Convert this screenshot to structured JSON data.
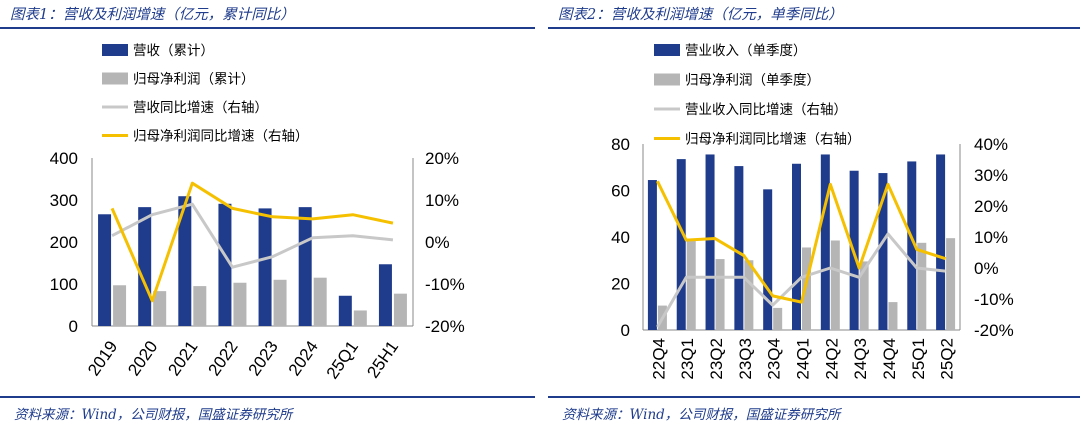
{
  "panels": [
    {
      "title": "图表1：营收及利润增速（亿元，累计同比）",
      "source": "资料来源：Wind，公司财报，国盛证券研究所"
    },
    {
      "title": "图表2：营收及利润增速（亿元，单季同比）",
      "source": "资料来源：Wind，公司财报，国盛证券研究所"
    }
  ],
  "colors": {
    "revenue_bar": "#1f3c8c",
    "profit_bar": "#b5b5b5",
    "revenue_growth_line": "#c8c8c8",
    "profit_growth_line": "#f5c000",
    "rule": "#1f3c8c"
  },
  "chart_data": [
    {
      "type": "bar",
      "title": "营收及利润增速（亿元，累计同比）",
      "categories": [
        "2019",
        "2020",
        "2021",
        "2022",
        "2023",
        "2024",
        "25Q1",
        "25H1"
      ],
      "series": [
        {
          "name": "营收（累计）",
          "type": "bar",
          "axis": "left",
          "values": [
            266,
            283,
            309,
            291,
            280,
            283,
            72,
            147
          ]
        },
        {
          "name": "归母净利润（累计）",
          "type": "bar",
          "axis": "left",
          "values": [
            97,
            83,
            95,
            103,
            110,
            115,
            37,
            77
          ]
        },
        {
          "name": "营收同比增速（右轴）",
          "type": "line",
          "axis": "right",
          "values": [
            1.5,
            6.5,
            9.0,
            -6.0,
            -3.5,
            1.0,
            1.5,
            0.5
          ]
        },
        {
          "name": "归母净利润同比增速（右轴）",
          "type": "line",
          "axis": "right",
          "values": [
            8.0,
            -14.0,
            14.0,
            8.0,
            6.0,
            5.5,
            6.5,
            4.5
          ]
        }
      ],
      "left_axis": {
        "min": 0,
        "max": 400,
        "ticks": [
          0,
          100,
          200,
          300,
          400
        ],
        "tick_labels": [
          "0",
          "100",
          "200",
          "300",
          "400"
        ]
      },
      "right_axis": {
        "min": -20,
        "max": 20,
        "ticks": [
          -20,
          -10,
          0,
          10,
          20
        ],
        "tick_labels": [
          "-20%",
          "-10%",
          "0%",
          "10%",
          "20%"
        ]
      },
      "grid": false,
      "legend_position": "top"
    },
    {
      "type": "bar",
      "title": "营收及利润增速（亿元，单季同比）",
      "categories": [
        "22Q4",
        "23Q1",
        "23Q2",
        "23Q3",
        "23Q4",
        "24Q1",
        "24Q2",
        "24Q3",
        "24Q4",
        "25Q1",
        "25Q2"
      ],
      "series": [
        {
          "name": "营业收入（单季度）",
          "type": "bar",
          "axis": "left",
          "values": [
            64.5,
            73.5,
            75.5,
            70.5,
            60.5,
            71.5,
            75.5,
            68.5,
            67.5,
            72.5,
            75.5
          ]
        },
        {
          "name": "归母净利润（单季度）",
          "type": "bar",
          "axis": "left",
          "values": [
            10.5,
            38.5,
            30.5,
            30,
            9.5,
            35.5,
            38.5,
            29.5,
            12,
            37.5,
            39.5
          ]
        },
        {
          "name": "营业收入同比增速（右轴）",
          "type": "line",
          "axis": "right",
          "values": [
            -19,
            -3,
            -3,
            -3,
            -12,
            -3,
            0,
            -3,
            11,
            0,
            -1
          ]
        },
        {
          "name": "归母净利润同比增速（右轴）",
          "type": "line",
          "axis": "right",
          "values": [
            28,
            9,
            9.5,
            4,
            -9,
            -11,
            27,
            0,
            27,
            6,
            3
          ]
        }
      ],
      "left_axis": {
        "min": 0,
        "max": 80,
        "ticks": [
          0,
          20,
          40,
          60,
          80
        ],
        "tick_labels": [
          "0",
          "20",
          "40",
          "60",
          "80"
        ]
      },
      "right_axis": {
        "min": -20,
        "max": 40,
        "ticks": [
          -20,
          -10,
          0,
          10,
          20,
          30,
          40
        ],
        "tick_labels": [
          "-20%",
          "-10%",
          "0%",
          "10%",
          "20%",
          "30%",
          "40%"
        ]
      },
      "grid": false,
      "legend_position": "top"
    }
  ]
}
